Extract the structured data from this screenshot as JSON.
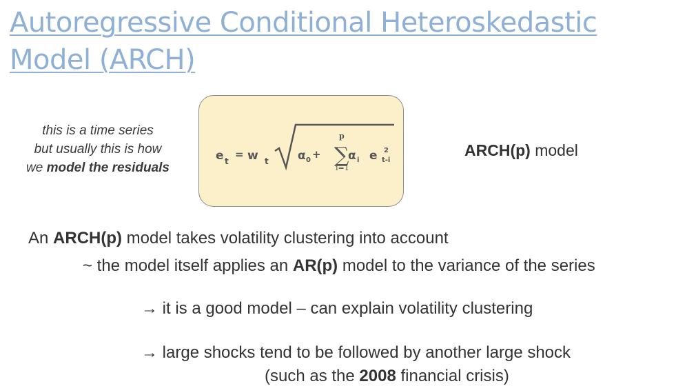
{
  "slide": {
    "title_line1": "Autoregressive Conditional Heteroskedastic",
    "title_line2": "Model (ARCH)"
  },
  "note": {
    "line1": "this is a time series",
    "line2": "but usually this is how",
    "line3_pre": "we ",
    "line3_bold": "model the residuals"
  },
  "equation": {
    "e": "e",
    "e_sub": "t",
    "equals": "=",
    "w": "w",
    "w_sub": "t",
    "alpha0": "α",
    "alpha0_sub": "0",
    "plus": "+",
    "sum": "∑",
    "sum_upper": "p",
    "sum_lower": "i=1",
    "alphai": "α",
    "alphai_sub": "i",
    "e2": "e",
    "e2_sup": "2",
    "e2_sub": "t-i"
  },
  "model_label": {
    "bold": "ARCH(p)",
    "rest": " model"
  },
  "body": {
    "p1_pre": "An ",
    "p1_bold": "ARCH(p)",
    "p1_post": " model takes volatility clustering into account",
    "p2_pre": "~ the model itself applies an ",
    "p2_bold": "AR(p)",
    "p2_post": " model to the variance of the series",
    "p3": "→ it is a good model – can explain volatility clustering",
    "p4": "→ large shocks tend to be followed by another large shock",
    "p5_pre": "(such as the ",
    "p5_bold": "2008",
    "p5_post": " financial crisis)"
  }
}
